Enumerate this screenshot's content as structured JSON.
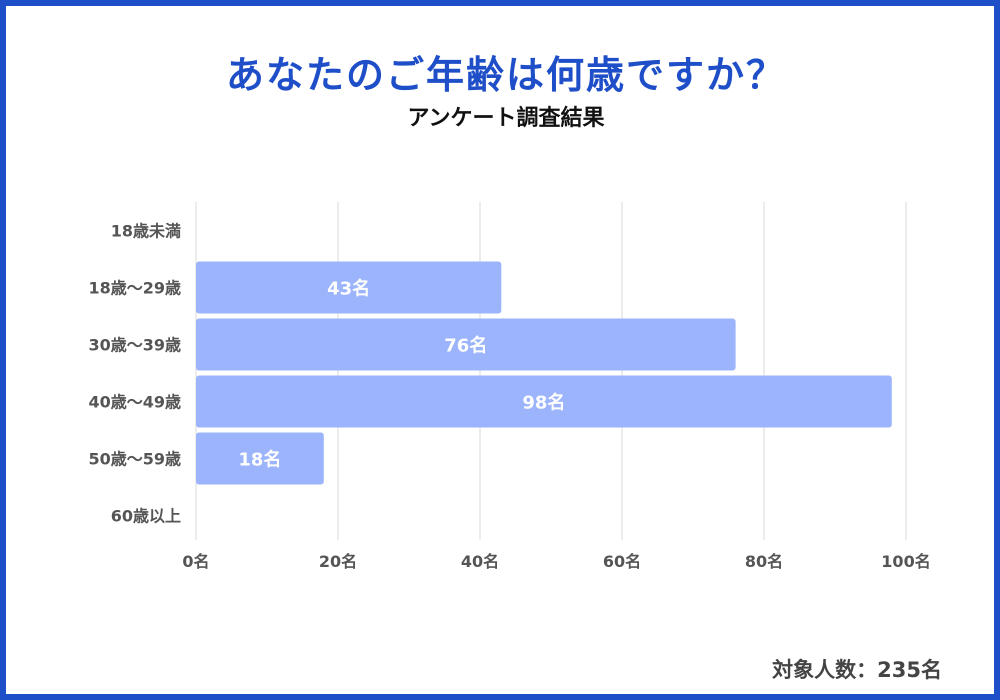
{
  "chart_data": {
    "type": "bar",
    "orientation": "horizontal",
    "title": "あなたのご年齢は何歳ですか？",
    "subtitle": "アンケート調査結果",
    "categories": [
      "18歳未満",
      "18歳〜29歳",
      "30歳〜39歳",
      "40歳〜49歳",
      "50歳〜59歳",
      "60歳以上"
    ],
    "values": [
      0,
      43,
      76,
      98,
      18,
      0
    ],
    "data_labels": [
      "",
      "43名",
      "76名",
      "98名",
      "18名",
      ""
    ],
    "xlim": [
      0,
      100
    ],
    "xticks": [
      0,
      20,
      40,
      60,
      80,
      100
    ],
    "xtick_labels": [
      "0名",
      "20名",
      "40名",
      "60名",
      "80名",
      "100名"
    ],
    "unit": "名",
    "grid": true,
    "bar_color": "#9bb4fb",
    "label_color": "#ffffff"
  },
  "footer": {
    "label": "対象人数：235名"
  },
  "colors": {
    "frame": "#1f4fc8",
    "title": "#1f4fc8",
    "grid": "#e6e6e6",
    "axis_text": "#555555"
  }
}
